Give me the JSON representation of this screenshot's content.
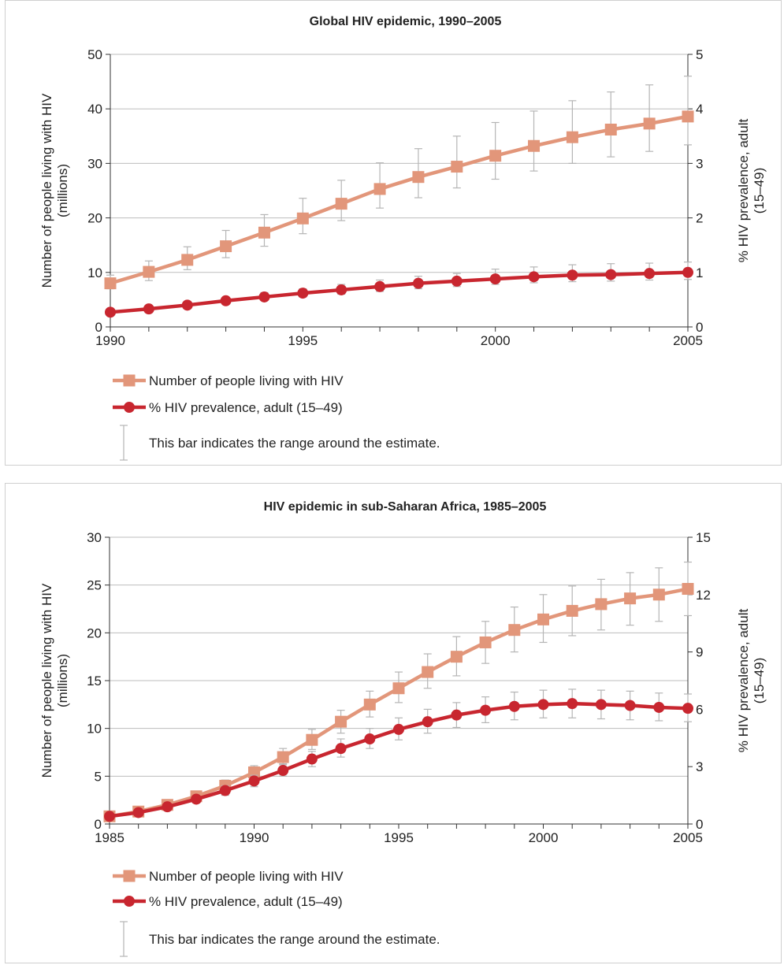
{
  "colors": {
    "count_series": "#E2967A",
    "prevalence_series": "#C8262F",
    "error_bar": "#b5b5b5",
    "grid": "#bdbdbd",
    "axis": "#333333",
    "panel_border": "#cfcfcf"
  },
  "legend": {
    "count_label": "Number of people living with HIV",
    "prevalence_label": "% HIV prevalence, adult (15–49)",
    "range_note": "This bar indicates the range around the estimate."
  },
  "chart_data": [
    {
      "type": "line",
      "title": "Global HIV epidemic, 1990–2005",
      "ylabel_left": [
        "Number of people living with HIV",
        "(millions)"
      ],
      "ylabel_right": [
        "% HIV prevalence, adult",
        "(15–49)"
      ],
      "x": [
        1990,
        1991,
        1992,
        1993,
        1994,
        1995,
        1996,
        1997,
        1998,
        1999,
        2000,
        2001,
        2002,
        2003,
        2004,
        2005
      ],
      "xlim": [
        1990,
        2005
      ],
      "xticks": [
        1990,
        1995,
        2000,
        2005
      ],
      "ylim_left": [
        0,
        50
      ],
      "yticks_left": [
        0,
        10,
        20,
        30,
        40,
        50
      ],
      "ylim_right": [
        0,
        5
      ],
      "yticks_right": [
        0,
        1,
        2,
        3,
        4,
        5
      ],
      "grid": true,
      "series": [
        {
          "name": "Number of people living with HIV",
          "axis": "left",
          "marker": "square",
          "values": [
            8.0,
            10.1,
            12.3,
            14.8,
            17.3,
            19.9,
            22.6,
            25.3,
            27.5,
            29.4,
            31.4,
            33.2,
            34.8,
            36.2,
            37.3,
            38.6
          ],
          "low": [
            7.0,
            8.5,
            10.5,
            12.7,
            14.8,
            17.1,
            19.5,
            21.8,
            23.7,
            25.5,
            27.1,
            28.6,
            30.0,
            31.2,
            32.2,
            33.4
          ],
          "high": [
            9.5,
            12.1,
            14.7,
            17.7,
            20.6,
            23.6,
            26.9,
            30.1,
            32.7,
            35.0,
            37.5,
            39.6,
            41.5,
            43.1,
            44.4,
            46.0
          ]
        },
        {
          "name": "% HIV prevalence, adult (15–49)",
          "axis": "right",
          "marker": "circle",
          "values": [
            0.27,
            0.33,
            0.4,
            0.48,
            0.55,
            0.62,
            0.68,
            0.74,
            0.8,
            0.84,
            0.88,
            0.92,
            0.95,
            0.96,
            0.98,
            1.0
          ],
          "low": [
            0.24,
            0.3,
            0.36,
            0.43,
            0.49,
            0.55,
            0.6,
            0.65,
            0.7,
            0.74,
            0.78,
            0.81,
            0.83,
            0.84,
            0.86,
            0.87
          ],
          "high": [
            0.3,
            0.37,
            0.46,
            0.54,
            0.63,
            0.7,
            0.78,
            0.86,
            0.93,
            0.98,
            1.06,
            1.1,
            1.14,
            1.16,
            1.17,
            1.19
          ]
        }
      ]
    },
    {
      "type": "line",
      "title": "HIV epidemic in sub-Saharan Africa, 1985–2005",
      "ylabel_left": [
        "Number of people living with HIV",
        "(millions)"
      ],
      "ylabel_right": [
        "% HIV prevalence, adult",
        "(15–49)"
      ],
      "x": [
        1985,
        1986,
        1987,
        1988,
        1989,
        1990,
        1991,
        1992,
        1993,
        1994,
        1995,
        1996,
        1997,
        1998,
        1999,
        2000,
        2001,
        2002,
        2003,
        2004,
        2005
      ],
      "xlim": [
        1985,
        2005
      ],
      "xticks": [
        1985,
        1990,
        1995,
        2000,
        2005
      ],
      "ylim_left": [
        0,
        30
      ],
      "yticks_left": [
        0,
        5,
        10,
        15,
        20,
        25,
        30
      ],
      "ylim_right": [
        0,
        15
      ],
      "yticks_right": [
        0,
        3,
        6,
        9,
        12,
        15
      ],
      "grid": true,
      "series": [
        {
          "name": "Number of people living with HIV",
          "axis": "left",
          "marker": "square",
          "values": [
            0.8,
            1.3,
            2.0,
            2.9,
            4.0,
            5.4,
            7.0,
            8.8,
            10.7,
            12.5,
            14.2,
            15.9,
            17.5,
            19.0,
            20.3,
            21.4,
            22.3,
            23.0,
            23.6,
            24.0,
            24.6
          ],
          "low": [
            0.6,
            1.0,
            1.6,
            2.4,
            3.4,
            4.7,
            6.2,
            7.8,
            9.5,
            11.2,
            12.7,
            14.2,
            15.5,
            16.8,
            18.0,
            19.0,
            19.7,
            20.3,
            20.8,
            21.2,
            21.8
          ],
          "high": [
            1.0,
            1.6,
            2.4,
            3.4,
            4.6,
            6.1,
            7.9,
            9.9,
            11.9,
            13.9,
            15.9,
            17.8,
            19.6,
            21.2,
            22.7,
            24.0,
            24.9,
            25.6,
            26.3,
            26.8,
            27.4
          ]
        },
        {
          "name": "% HIV prevalence, adult (15–49)",
          "axis": "right",
          "marker": "circle",
          "values": [
            0.4,
            0.6,
            0.9,
            1.3,
            1.75,
            2.25,
            2.8,
            3.4,
            3.95,
            4.45,
            4.95,
            5.35,
            5.7,
            5.95,
            6.15,
            6.25,
            6.3,
            6.25,
            6.2,
            6.1,
            6.05
          ],
          "low": [
            0.3,
            0.5,
            0.75,
            1.1,
            1.5,
            1.95,
            2.5,
            3.0,
            3.5,
            3.95,
            4.4,
            4.75,
            5.05,
            5.3,
            5.45,
            5.55,
            5.55,
            5.5,
            5.45,
            5.4,
            5.35
          ],
          "high": [
            0.5,
            0.75,
            1.05,
            1.5,
            2.0,
            2.55,
            3.15,
            3.8,
            4.45,
            5.0,
            5.55,
            6.0,
            6.35,
            6.65,
            6.9,
            7.0,
            7.05,
            7.0,
            6.95,
            6.85,
            6.8
          ]
        }
      ]
    }
  ]
}
